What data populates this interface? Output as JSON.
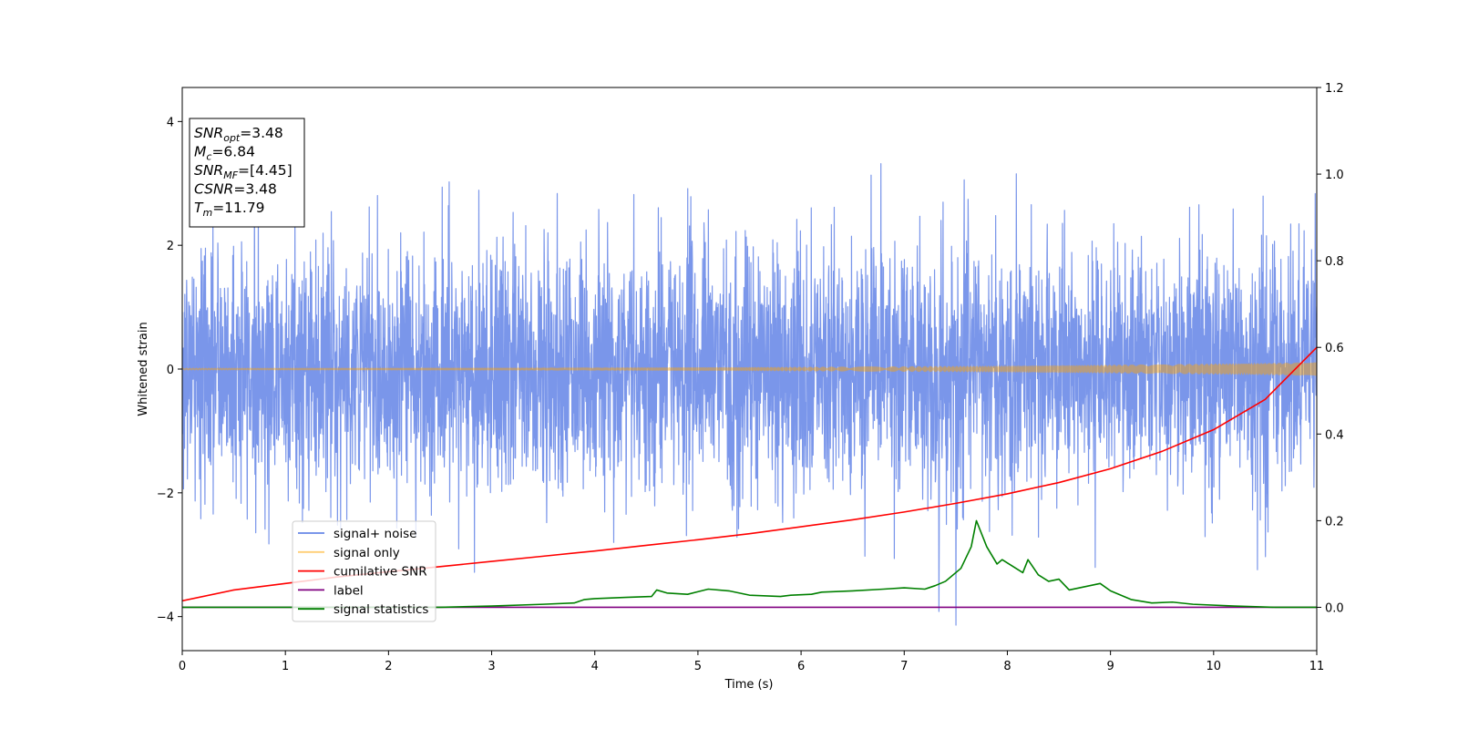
{
  "chart_data": {
    "type": "line",
    "xlabel": "Time (s)",
    "ylabel": "Whitened strain",
    "xlim": [
      0,
      11
    ],
    "ylim": [
      -4.55,
      4.55
    ],
    "y2lim": [
      -0.1,
      1.2
    ],
    "x_ticks": [
      "0",
      "1",
      "2",
      "3",
      "4",
      "5",
      "6",
      "7",
      "8",
      "9",
      "10",
      "11"
    ],
    "y_ticks": [
      "−4",
      "−2",
      "0",
      "2",
      "4"
    ],
    "y2_ticks": [
      "0.0",
      "0.2",
      "0.4",
      "0.6",
      "0.8",
      "1.0",
      "1.2"
    ],
    "info_box": [
      {
        "base": "SNR",
        "sub": "opt",
        "value": "=3.48"
      },
      {
        "base": "M",
        "sub": "c",
        "value": "=6.84"
      },
      {
        "base": "SNR",
        "sub": "MF",
        "value": "=[4.45]"
      },
      {
        "base": "CSNR",
        "sub": "",
        "value": "=3.48"
      },
      {
        "base": "T",
        "sub": "m",
        "value": "=11.79"
      }
    ],
    "legend_placement": "lower-left",
    "series": [
      {
        "name": "signal+ noise",
        "axis": "left",
        "color": "#4169e1",
        "opacity": 0.7,
        "kind": "noise",
        "sigma": 1.0,
        "x_range": [
          0,
          11
        ],
        "note_min": -4.15,
        "note_max": 4.15
      },
      {
        "name": "signal only",
        "axis": "left",
        "color": "#ffa500",
        "opacity": 0.45,
        "kind": "chirp",
        "x_range": [
          0,
          11
        ],
        "amplitude_start": 0.01,
        "amplitude_end": 0.1
      },
      {
        "name": "cumilative SNR",
        "axis": "right",
        "color": "#ff0000",
        "x": [
          0,
          0.5,
          1,
          1.5,
          2,
          2.5,
          3,
          3.5,
          4,
          4.5,
          5,
          5.5,
          6,
          6.5,
          7,
          7.5,
          8,
          8.5,
          9,
          9.5,
          10,
          10.5,
          11
        ],
        "y": [
          0.015,
          0.04,
          0.055,
          0.07,
          0.082,
          0.094,
          0.106,
          0.118,
          0.13,
          0.143,
          0.156,
          0.17,
          0.186,
          0.202,
          0.22,
          0.24,
          0.262,
          0.288,
          0.32,
          0.36,
          0.41,
          0.48,
          0.6
        ]
      },
      {
        "name": "label",
        "axis": "right",
        "color": "#800080",
        "x": [
          0,
          11
        ],
        "y": [
          0,
          0
        ]
      },
      {
        "name": "signal statistics",
        "axis": "right",
        "color": "#008000",
        "x": [
          0,
          2.5,
          3.0,
          3.5,
          3.8,
          3.9,
          4.0,
          4.3,
          4.55,
          4.6,
          4.7,
          4.9,
          5.1,
          5.3,
          5.5,
          5.8,
          5.9,
          6.1,
          6.2,
          6.5,
          6.8,
          7.0,
          7.2,
          7.3,
          7.4,
          7.55,
          7.65,
          7.7,
          7.8,
          7.9,
          7.95,
          8.05,
          8.15,
          8.2,
          8.3,
          8.4,
          8.5,
          8.6,
          8.8,
          8.9,
          9.0,
          9.2,
          9.4,
          9.6,
          9.8,
          10.2,
          10.6,
          11.0
        ],
        "y": [
          0.0,
          0.0,
          0.003,
          0.007,
          0.01,
          0.018,
          0.02,
          0.023,
          0.025,
          0.04,
          0.033,
          0.03,
          0.042,
          0.038,
          0.028,
          0.025,
          0.028,
          0.03,
          0.035,
          0.038,
          0.042,
          0.045,
          0.042,
          0.05,
          0.06,
          0.09,
          0.14,
          0.2,
          0.14,
          0.1,
          0.11,
          0.095,
          0.08,
          0.11,
          0.075,
          0.06,
          0.065,
          0.04,
          0.05,
          0.055,
          0.038,
          0.018,
          0.01,
          0.012,
          0.007,
          0.003,
          0.0,
          0.0
        ]
      }
    ]
  }
}
